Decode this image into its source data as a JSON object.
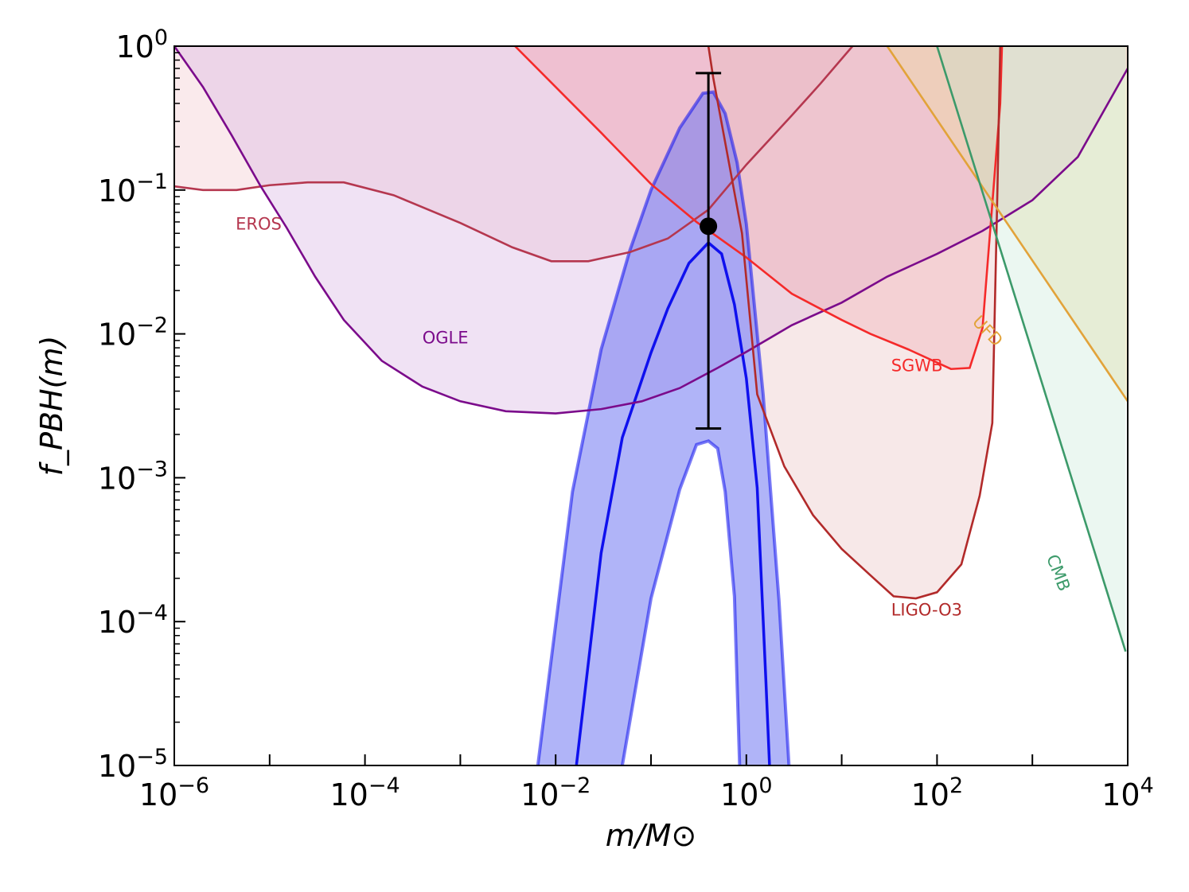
{
  "chart_data": {
    "type": "area",
    "title": "",
    "xlabel": "m/M⊙",
    "ylabel": "f_PBH(m)",
    "xscale": "log",
    "yscale": "log",
    "xlim": [
      1e-06,
      10000.0
    ],
    "ylim": [
      1e-05,
      1
    ],
    "x_ticks": [
      {
        "value": 1e-06,
        "base": "10",
        "exp": "−6"
      },
      {
        "value": 0.0001,
        "base": "10",
        "exp": "−4"
      },
      {
        "value": 0.01,
        "base": "10",
        "exp": "−2"
      },
      {
        "value": 1,
        "base": "10",
        "exp": "0"
      },
      {
        "value": 100.0,
        "base": "10",
        "exp": "2"
      },
      {
        "value": 10000.0,
        "base": "10",
        "exp": "4"
      }
    ],
    "y_ticks": [
      {
        "value": 1,
        "base": "10",
        "exp": "0"
      },
      {
        "value": 0.1,
        "base": "10",
        "exp": "−1"
      },
      {
        "value": 0.01,
        "base": "10",
        "exp": "−2"
      },
      {
        "value": 0.001,
        "base": "10",
        "exp": "−3"
      },
      {
        "value": 0.0001,
        "base": "10",
        "exp": "−4"
      },
      {
        "value": 1e-05,
        "base": "10",
        "exp": "−5"
      }
    ],
    "constraints": [
      {
        "name": "EROS",
        "color": "#b5374f",
        "fill_color": "#f0c3c9",
        "fill_opacity": 0.35,
        "label_at": [
          4.4e-06,
          0.053
        ],
        "points": [
          [
            1e-06,
            0.106
          ],
          [
            2e-06,
            0.1
          ],
          [
            4.5e-06,
            0.1
          ],
          [
            1e-05,
            0.108
          ],
          [
            2.5e-05,
            0.113
          ],
          [
            6e-05,
            0.113
          ],
          [
            0.0002,
            0.092
          ],
          [
            0.001,
            0.059
          ],
          [
            0.0035,
            0.04
          ],
          [
            0.009,
            0.032
          ],
          [
            0.022,
            0.032
          ],
          [
            0.06,
            0.037
          ],
          [
            0.15,
            0.046
          ],
          [
            0.4,
            0.073
          ],
          [
            1,
            0.15
          ],
          [
            3,
            0.33
          ],
          [
            6,
            0.55
          ],
          [
            13.0,
            1.0
          ]
        ]
      },
      {
        "name": "OGLE",
        "color": "#7b0b8b",
        "fill_color": "#d8b4e2",
        "fill_opacity": 0.38,
        "label_at": [
          0.0004,
          0.0086
        ],
        "points": [
          [
            1e-06,
            1.0
          ],
          [
            2e-06,
            0.52
          ],
          [
            4e-06,
            0.24
          ],
          [
            8e-06,
            0.107
          ],
          [
            1.5e-05,
            0.055
          ],
          [
            3e-05,
            0.025
          ],
          [
            6e-05,
            0.0125
          ],
          [
            0.00015,
            0.0065
          ],
          [
            0.0004,
            0.0043
          ],
          [
            0.001,
            0.0034
          ],
          [
            0.003,
            0.0029
          ],
          [
            0.01,
            0.0028
          ],
          [
            0.03,
            0.003
          ],
          [
            0.08,
            0.0034
          ],
          [
            0.2,
            0.0042
          ],
          [
            0.5,
            0.0058
          ],
          [
            1,
            0.0075
          ],
          [
            3,
            0.0115
          ],
          [
            10.0,
            0.0165
          ],
          [
            30.0,
            0.025
          ],
          [
            100.0,
            0.036
          ],
          [
            300.0,
            0.052
          ],
          [
            1000.0,
            0.085
          ],
          [
            3000.0,
            0.17
          ],
          [
            10000.0,
            0.7
          ]
        ]
      },
      {
        "name": "SGWB",
        "color": "#f52a2a",
        "fill_color": "#f39aa6",
        "fill_opacity": 0.35,
        "label_at": [
          33.0,
          0.0055
        ],
        "points": [
          [
            0.00375,
            1.0
          ],
          [
            0.01,
            0.52
          ],
          [
            0.03,
            0.25
          ],
          [
            0.1,
            0.11
          ],
          [
            0.3,
            0.06
          ],
          [
            1,
            0.034
          ],
          [
            3,
            0.019
          ],
          [
            10.0,
            0.0125
          ],
          [
            20.0,
            0.01
          ],
          [
            50.0,
            0.0078
          ],
          [
            140.0,
            0.0057
          ],
          [
            220.0,
            0.0058
          ],
          [
            300.0,
            0.011
          ],
          [
            460.0,
            0.4
          ],
          [
            480.0,
            1.0
          ]
        ]
      },
      {
        "name": "LIGO-O3",
        "color": "#b22a2a",
        "fill_color": "#e7bcbc",
        "fill_opacity": 0.35,
        "label_at": [
          33.0,
          0.00011
        ],
        "points": [
          [
            0.4,
            1.0
          ],
          [
            0.45,
            0.6
          ],
          [
            0.9,
            0.05
          ],
          [
            1.3,
            0.0038
          ],
          [
            2.5,
            0.0012
          ],
          [
            5,
            0.00055
          ],
          [
            10.0,
            0.00032
          ],
          [
            20.0,
            0.00021
          ],
          [
            35.0,
            0.00015
          ],
          [
            60.0,
            0.000145
          ],
          [
            100.0,
            0.00016
          ],
          [
            180.0,
            0.00025
          ],
          [
            280.0,
            0.00075
          ],
          [
            380.0,
            0.0024
          ],
          [
            430.0,
            0.1
          ],
          [
            460.0,
            1.0
          ]
        ]
      },
      {
        "name": "UFD",
        "color": "#e2a33a",
        "fill_color": "#eddc9e",
        "fill_opacity": 0.4,
        "label_at": [
          230.0,
          0.012
        ],
        "points": [
          [
            30.0,
            1.0
          ],
          [
            10000.0,
            0.0034
          ]
        ]
      },
      {
        "name": "CMB",
        "color": "#3c9a6a",
        "fill_color": "#bde5cf",
        "fill_opacity": 0.3,
        "label_at": [
          1400.0,
          0.00028
        ],
        "points": [
          [
            100.0,
            1.0
          ],
          [
            9500.0,
            6.2e-05
          ]
        ]
      }
    ],
    "posterior_band": {
      "color": "#0f10ee",
      "fill_color": "#6f77f2",
      "fill_opacity": 0.55,
      "outer_fill_opacity": 0.3,
      "median": [
        [
          0.0165,
          1e-05
        ],
        [
          0.03,
          0.0003
        ],
        [
          0.05,
          0.0019
        ],
        [
          0.1,
          0.0074
        ],
        [
          0.15,
          0.015
        ],
        [
          0.25,
          0.031
        ],
        [
          0.4,
          0.043
        ],
        [
          0.55,
          0.036
        ],
        [
          0.75,
          0.016
        ],
        [
          1,
          0.0049
        ],
        [
          1.3,
          0.00085
        ],
        [
          1.6,
          4e-05
        ],
        [
          1.75,
          1e-05
        ]
      ],
      "upper": [
        [
          0.0065,
          1e-05
        ],
        [
          0.015,
          0.0008
        ],
        [
          0.03,
          0.0078
        ],
        [
          0.06,
          0.038
        ],
        [
          0.1,
          0.1
        ],
        [
          0.2,
          0.27
        ],
        [
          0.35,
          0.47
        ],
        [
          0.45,
          0.48
        ],
        [
          0.6,
          0.34
        ],
        [
          0.8,
          0.155
        ],
        [
          1,
          0.058
        ],
        [
          1.5,
          0.0038
        ],
        [
          2.2,
          0.00014
        ],
        [
          2.8,
          1e-05
        ]
      ],
      "lower": [
        [
          0.05,
          1e-05
        ],
        [
          0.1,
          0.000145
        ],
        [
          0.2,
          0.00083
        ],
        [
          0.3,
          0.0017
        ],
        [
          0.4,
          0.0018
        ],
        [
          0.5,
          0.0016
        ],
        [
          0.6,
          0.0008
        ],
        [
          0.75,
          0.00015
        ],
        [
          0.85,
          1e-05
        ]
      ]
    },
    "point_estimate": {
      "x": 0.4,
      "y": 0.056,
      "yerr_low": 0.0022,
      "yerr_high": 0.65,
      "color": "#000000"
    }
  }
}
